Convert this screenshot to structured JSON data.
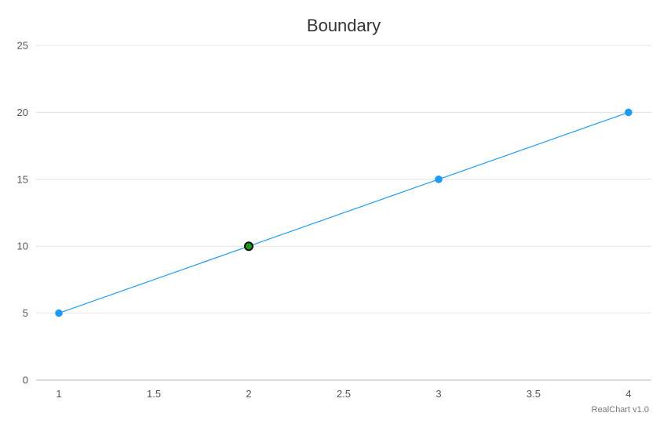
{
  "chart_data": {
    "type": "line",
    "title": "Boundary",
    "xlabel": "",
    "ylabel": "",
    "xlim": [
      0.88,
      4.12
    ],
    "ylim": [
      0,
      25
    ],
    "x_ticks": [
      1,
      1.5,
      2,
      2.5,
      3,
      3.5,
      4
    ],
    "y_ticks": [
      0,
      5,
      10,
      15,
      20,
      25
    ],
    "grid": "horizontal",
    "series": [
      {
        "x": [
          1,
          2,
          3,
          4
        ],
        "values": [
          5,
          10,
          15,
          20
        ],
        "color": "#1e9bf0",
        "highlight": {
          "index": 1,
          "fill": "#1f9a1f",
          "stroke": "#111111"
        }
      }
    ]
  },
  "credit": "RealChart v1.0",
  "colors": {
    "line": "#1e9bf0",
    "marker": "#1e9bf0",
    "grid": "#e3e3e3",
    "axis": "#bdbdbd",
    "text": "#333333"
  }
}
